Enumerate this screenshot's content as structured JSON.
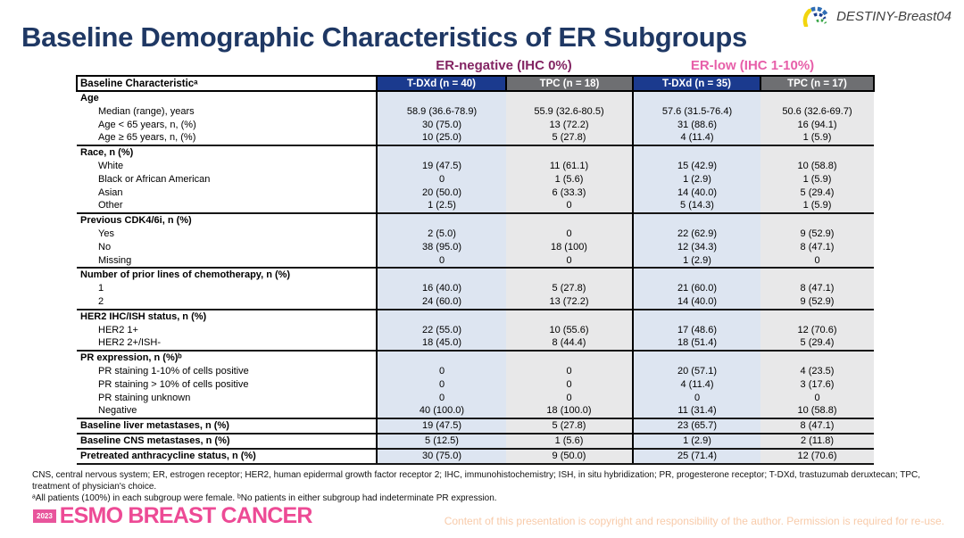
{
  "brand": {
    "name": "DESTINY-Breast04",
    "logo": "fan-arcs-icon"
  },
  "title": "Baseline Demographic Characteristics of ER Subgroups",
  "groups": {
    "er_negative": {
      "label": "ER-negative (IHC 0%)",
      "color": "#832563"
    },
    "er_low": {
      "label": "ER-low (IHC 1-10%)",
      "color": "#e75fa9"
    }
  },
  "table": {
    "header": [
      "Baseline Characteristicᵃ",
      "T-DXd (n = 40)",
      "TPC (n = 18)",
      "T-DXd (n = 35)",
      "TPC (n = 17)"
    ],
    "rows": [
      {
        "type": "section",
        "label": "Age",
        "values": [
          "",
          "",
          "",
          ""
        ]
      },
      {
        "type": "sub",
        "label": "Median (range), years",
        "values": [
          "58.9 (36.6-78.9)",
          "55.9 (32.6-80.5)",
          "57.6 (31.5-76.4)",
          "50.6 (32.6-69.7)"
        ]
      },
      {
        "type": "sub",
        "label": "Age < 65 years, n, (%)",
        "values": [
          "30 (75.0)",
          "13 (72.2)",
          "31 (88.6)",
          "16 (94.1)"
        ]
      },
      {
        "type": "sub",
        "label": "Age ≥ 65 years, n, (%)",
        "values": [
          "10 (25.0)",
          "5 (27.8)",
          "4 (11.4)",
          "1 (5.9)"
        ]
      },
      {
        "type": "section",
        "label": "Race, n (%)",
        "values": [
          "",
          "",
          "",
          ""
        ]
      },
      {
        "type": "sub",
        "label": "White",
        "values": [
          "19 (47.5)",
          "11 (61.1)",
          "15 (42.9)",
          "10 (58.8)"
        ]
      },
      {
        "type": "sub",
        "label": "Black or African American",
        "values": [
          "0",
          "1 (5.6)",
          "1 (2.9)",
          "1 (5.9)"
        ]
      },
      {
        "type": "sub",
        "label": "Asian",
        "values": [
          "20 (50.0)",
          "6 (33.3)",
          "14 (40.0)",
          "5 (29.4)"
        ]
      },
      {
        "type": "sub",
        "label": "Other",
        "values": [
          "1 (2.5)",
          "0",
          "5 (14.3)",
          "1 (5.9)"
        ]
      },
      {
        "type": "section",
        "label": "Previous CDK4/6i, n (%)",
        "values": [
          "",
          "",
          "",
          ""
        ]
      },
      {
        "type": "sub",
        "label": "Yes",
        "values": [
          "2 (5.0)",
          "0",
          "22 (62.9)",
          "9 (52.9)"
        ]
      },
      {
        "type": "sub",
        "label": "No",
        "values": [
          "38 (95.0)",
          "18 (100)",
          "12 (34.3)",
          "8 (47.1)"
        ]
      },
      {
        "type": "sub",
        "label": "Missing",
        "values": [
          "0",
          "0",
          "1 (2.9)",
          "0"
        ]
      },
      {
        "type": "section",
        "label": "Number of prior lines of chemotherapy, n (%)",
        "values": [
          "",
          "",
          "",
          ""
        ]
      },
      {
        "type": "sub",
        "label": "1",
        "values": [
          "16 (40.0)",
          "5 (27.8)",
          "21 (60.0)",
          "8 (47.1)"
        ]
      },
      {
        "type": "sub",
        "label": "2",
        "values": [
          "24 (60.0)",
          "13 (72.2)",
          "14 (40.0)",
          "9 (52.9)"
        ]
      },
      {
        "type": "section",
        "label": "HER2 IHC/ISH status, n (%)",
        "values": [
          "",
          "",
          "",
          ""
        ]
      },
      {
        "type": "sub",
        "label": "HER2 1+",
        "values": [
          "22 (55.0)",
          "10 (55.6)",
          "17 (48.6)",
          "12 (70.6)"
        ]
      },
      {
        "type": "sub",
        "label": "HER2 2+/ISH-",
        "values": [
          "18 (45.0)",
          "8 (44.4)",
          "18 (51.4)",
          "5 (29.4)"
        ]
      },
      {
        "type": "section",
        "label": "PR expression, n (%)ᵇ",
        "values": [
          "",
          "",
          "",
          ""
        ]
      },
      {
        "type": "sub",
        "label": "PR staining 1-10% of cells positive",
        "values": [
          "0",
          "0",
          "20 (57.1)",
          "4 (23.5)"
        ]
      },
      {
        "type": "sub",
        "label": "PR staining > 10% of cells positive",
        "values": [
          "0",
          "0",
          "4 (11.4)",
          "3 (17.6)"
        ]
      },
      {
        "type": "sub",
        "label": "PR staining unknown",
        "values": [
          "0",
          "0",
          "0",
          "0"
        ]
      },
      {
        "type": "sub",
        "label": "Negative",
        "values": [
          "40 (100.0)",
          "18 (100.0)",
          "11 (31.4)",
          "10 (58.8)"
        ]
      },
      {
        "type": "boldrow",
        "label": "Baseline liver metastases, n (%)",
        "values": [
          "19 (47.5)",
          "5 (27.8)",
          "23 (65.7)",
          "8 (47.1)"
        ]
      },
      {
        "type": "boldrow",
        "label": "Baseline CNS metastases, n (%)",
        "values": [
          "5 (12.5)",
          "1 (5.6)",
          "1 (2.9)",
          "2 (11.8)"
        ]
      },
      {
        "type": "boldrow",
        "label": "Pretreated anthracycline status, n (%)",
        "values": [
          "30 (75.0)",
          "9 (50.0)",
          "25 (71.4)",
          "12 (70.6)"
        ]
      }
    ]
  },
  "footnotes": {
    "abbreviations": "CNS, central nervous system; ER, estrogen receptor; HER2, human epidermal growth factor receptor 2; IHC, immunohistochemistry; ISH, in situ hybridization; PR, progesterone receptor; T-DXd, trastuzumab deruxtecan; TPC, treatment of physician's choice.",
    "notes": "ᵃAll patients (100%) in each subgroup were female. ᵇNo patients in either subgroup had indeterminate PR expression."
  },
  "footer": {
    "esmo_year": "2023",
    "esmo_name": "ESMO BREAST CANCER",
    "copyright": "Content of this presentation is copyright and responsibility of the author. Permission is required for re-use."
  },
  "colors": {
    "title": "#1f3864",
    "er_negative_label": "#832563",
    "er_low_label": "#e75fa9",
    "tdxd_header_bg": "#1b3a8e",
    "tpc_header_bg": "#6e6f72",
    "tdxd_column_bg": "#dde5f1",
    "tpc_column_bg": "#e8e8e9",
    "esmo_pink": "#ed4a95",
    "copyright_text": "#f8cbaa"
  }
}
